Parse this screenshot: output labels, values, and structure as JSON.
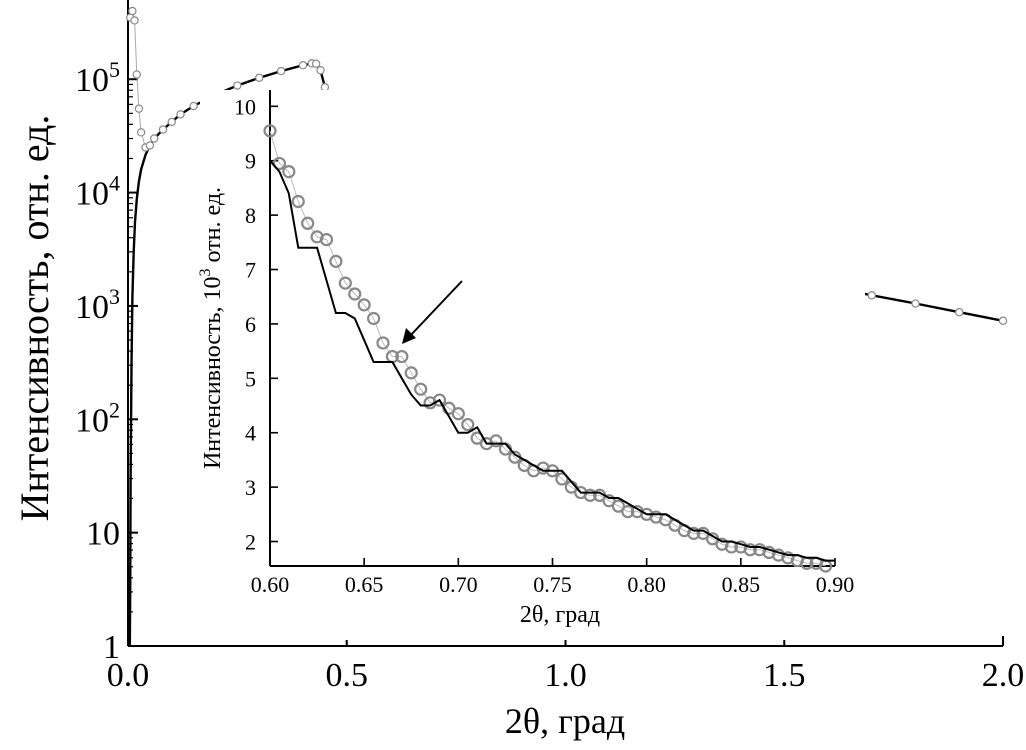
{
  "chart_data": [
    {
      "type": "line",
      "role": "main",
      "xlabel": "2θ, град",
      "ylabel": "Интенсивность, отн. ед.",
      "xlim": [
        0,
        2.0
      ],
      "ylim": [
        1,
        500000
      ],
      "yscale": "log",
      "grid": false,
      "xticks": [
        0.0,
        0.5,
        1.0,
        1.5,
        2.0
      ],
      "xtick_labels": [
        "0.0",
        "0.5",
        "1.0",
        "1.5",
        "2.0"
      ],
      "yticks": [
        1,
        10,
        100,
        1000,
        10000,
        100000
      ],
      "ytick_labels": [
        {
          "base": "1",
          "exp": ""
        },
        {
          "base": "10",
          "exp": ""
        },
        {
          "base": "10",
          "exp": "2"
        },
        {
          "base": "10",
          "exp": "3"
        },
        {
          "base": "10",
          "exp": "4"
        },
        {
          "base": "10",
          "exp": "5"
        }
      ],
      "series": [
        {
          "style": "open-circles",
          "color": "#888888",
          "x": [
            0.005,
            0.01,
            0.015,
            0.02,
            0.025,
            0.03,
            0.04,
            0.05,
            0.06,
            0.08,
            0.1,
            0.12,
            0.15,
            0.2,
            0.25,
            0.3,
            0.35,
            0.4,
            0.42,
            0.43,
            0.44,
            0.45,
            0.46,
            0.48,
            0.5,
            0.55,
            0.6,
            0.7,
            0.8,
            0.9,
            1.0,
            1.1,
            1.2,
            1.3,
            1.4,
            1.5,
            1.6,
            1.7,
            1.8,
            1.9,
            2.0
          ],
          "y": [
            350000,
            400000,
            330000,
            110000,
            55000,
            34000,
            25000,
            26000,
            30000,
            36000,
            42000,
            49000,
            58000,
            73000,
            88000,
            103000,
            118000,
            133000,
            138000,
            137000,
            120000,
            85000,
            58000,
            40000,
            30000,
            20500,
            16000,
            10800,
            7900,
            6100,
            4900,
            3900,
            3250,
            2650,
            2150,
            1780,
            1480,
            1240,
            1050,
            880,
            740
          ]
        },
        {
          "style": "solid-line",
          "color": "#000000",
          "x": [
            0.004,
            0.005,
            0.006,
            0.008,
            0.01,
            0.013,
            0.016,
            0.02,
            0.025,
            0.03,
            0.04,
            0.05,
            0.06,
            0.08,
            0.1,
            0.12,
            0.15,
            0.2,
            0.25,
            0.3,
            0.35,
            0.4,
            0.42,
            0.43,
            0.44,
            0.45,
            0.46,
            0.48,
            0.5,
            0.55,
            0.6,
            0.7,
            0.8,
            0.9,
            1.0,
            1.1,
            1.2,
            1.3,
            1.4,
            1.5,
            1.6,
            1.7,
            1.8,
            1.9,
            2.0
          ],
          "y": [
            1,
            3,
            30,
            300,
            1200,
            3000,
            5500,
            8800,
            12500,
            16000,
            21500,
            26000,
            30000,
            36000,
            42000,
            49000,
            58000,
            73000,
            88000,
            103000,
            118000,
            133000,
            138000,
            137000,
            120000,
            85000,
            58000,
            40000,
            30000,
            20500,
            16000,
            10800,
            7900,
            6100,
            4900,
            3900,
            3250,
            2650,
            2150,
            1780,
            1480,
            1240,
            1050,
            880,
            740
          ]
        }
      ]
    },
    {
      "type": "line",
      "role": "inset",
      "xlabel": "2θ, град",
      "ylabel": {
        "main": "Интенсивность, 10",
        "exp": "3",
        "rest": " отн. ед."
      },
      "xlim": [
        0.6,
        0.9
      ],
      "ylim": [
        1.55,
        10.3
      ],
      "grid": false,
      "xticks": [
        0.6,
        0.65,
        0.7,
        0.75,
        0.8,
        0.85,
        0.9
      ],
      "xtick_labels": [
        "0.60",
        "0.65",
        "0.70",
        "0.75",
        "0.80",
        "0.85",
        "0.90"
      ],
      "yticks": [
        2,
        3,
        4,
        5,
        6,
        7,
        8,
        9,
        10
      ],
      "ytick_labels": [
        "2",
        "3",
        "4",
        "5",
        "6",
        "7",
        "8",
        "9",
        "10"
      ],
      "series": [
        {
          "style": "open-circles",
          "color": "#888888",
          "x": [
            0.6,
            0.605,
            0.61,
            0.615,
            0.62,
            0.625,
            0.63,
            0.635,
            0.64,
            0.645,
            0.65,
            0.655,
            0.66,
            0.665,
            0.67,
            0.675,
            0.68,
            0.685,
            0.69,
            0.695,
            0.7,
            0.705,
            0.71,
            0.715,
            0.72,
            0.725,
            0.73,
            0.735,
            0.74,
            0.745,
            0.75,
            0.755,
            0.76,
            0.765,
            0.77,
            0.775,
            0.78,
            0.785,
            0.79,
            0.795,
            0.8,
            0.805,
            0.81,
            0.815,
            0.82,
            0.825,
            0.83,
            0.835,
            0.84,
            0.845,
            0.85,
            0.855,
            0.86,
            0.865,
            0.87,
            0.875,
            0.88,
            0.885,
            0.89,
            0.895
          ],
          "y": [
            9.55,
            8.95,
            8.8,
            8.25,
            7.85,
            7.6,
            7.55,
            7.15,
            6.75,
            6.55,
            6.35,
            6.1,
            5.65,
            5.4,
            5.4,
            5.1,
            4.8,
            4.55,
            4.6,
            4.45,
            4.35,
            4.15,
            3.9,
            3.8,
            3.85,
            3.7,
            3.55,
            3.4,
            3.3,
            3.35,
            3.3,
            3.15,
            3.0,
            2.9,
            2.85,
            2.85,
            2.75,
            2.65,
            2.55,
            2.55,
            2.5,
            2.45,
            2.4,
            2.3,
            2.2,
            2.15,
            2.15,
            2.05,
            1.95,
            1.9,
            1.9,
            1.85,
            1.85,
            1.8,
            1.75,
            1.7,
            1.65,
            1.6,
            1.6,
            1.55
          ]
        },
        {
          "style": "solid-line",
          "color": "#000000",
          "x": [
            0.6,
            0.605,
            0.61,
            0.615,
            0.62,
            0.625,
            0.63,
            0.635,
            0.64,
            0.645,
            0.65,
            0.655,
            0.66,
            0.665,
            0.67,
            0.675,
            0.68,
            0.685,
            0.69,
            0.695,
            0.7,
            0.705,
            0.71,
            0.715,
            0.72,
            0.725,
            0.73,
            0.735,
            0.74,
            0.745,
            0.75,
            0.755,
            0.76,
            0.765,
            0.77,
            0.775,
            0.78,
            0.785,
            0.79,
            0.795,
            0.8,
            0.805,
            0.81,
            0.815,
            0.82,
            0.825,
            0.83,
            0.835,
            0.84,
            0.845,
            0.85,
            0.855,
            0.86,
            0.865,
            0.87,
            0.875,
            0.88,
            0.885,
            0.89,
            0.895,
            0.9
          ],
          "y": [
            9.0,
            8.8,
            8.4,
            7.4,
            7.4,
            7.4,
            6.8,
            6.2,
            6.2,
            6.1,
            5.7,
            5.3,
            5.3,
            5.3,
            5.0,
            4.7,
            4.5,
            4.5,
            4.6,
            4.3,
            4.0,
            4.0,
            4.1,
            3.8,
            3.8,
            3.8,
            3.6,
            3.5,
            3.4,
            3.3,
            3.3,
            3.3,
            3.1,
            2.9,
            2.9,
            2.9,
            2.8,
            2.8,
            2.7,
            2.6,
            2.5,
            2.5,
            2.5,
            2.4,
            2.3,
            2.2,
            2.2,
            2.1,
            2.0,
            2.0,
            1.95,
            1.9,
            1.9,
            1.85,
            1.8,
            1.75,
            1.75,
            1.7,
            1.7,
            1.65,
            1.65
          ]
        }
      ]
    }
  ]
}
